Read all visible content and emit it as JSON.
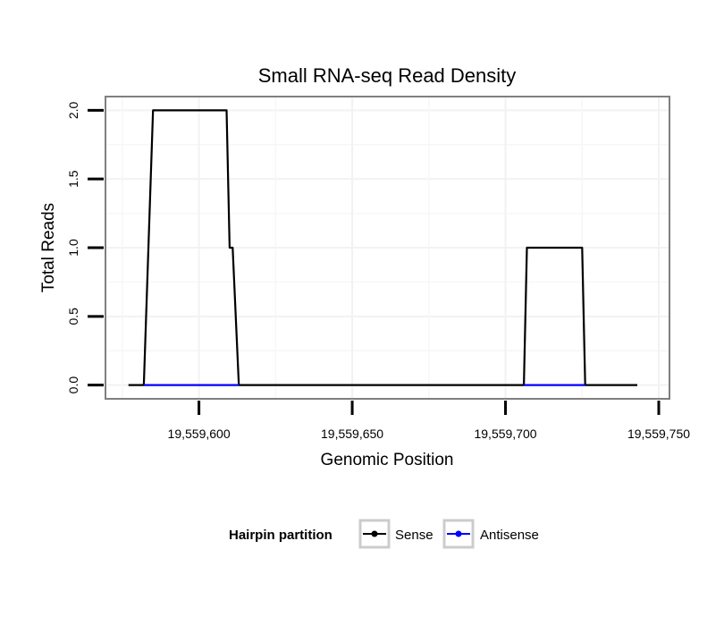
{
  "chart_data": {
    "type": "line",
    "title": "Small RNA-seq Read Density",
    "xlabel": "Genomic Position",
    "ylabel": "Total Reads",
    "xlim": [
      19559569.5,
      19559753.5
    ],
    "ylim": [
      -0.1,
      2.1
    ],
    "x_ticks": [
      19559600,
      19559650,
      19559700,
      19559750
    ],
    "x_tick_labels": [
      "19,559,600",
      "19,559,650",
      "19,559,700",
      "19,559,750"
    ],
    "y_ticks": [
      0.0,
      0.5,
      1.0,
      1.5,
      2.0
    ],
    "y_tick_labels": [
      "0.0",
      "0.5",
      "1.0",
      "1.5",
      "2.0"
    ],
    "grid": true,
    "legend": {
      "title": "Hairpin partition",
      "position": "bottom",
      "entries": [
        {
          "label": "Sense",
          "color": "#000000"
        },
        {
          "label": "Antisense",
          "color": "#0000ff"
        }
      ]
    },
    "series": [
      {
        "name": "Sense",
        "color": "#000000",
        "x": [
          19559577,
          19559582,
          19559585,
          19559609,
          19559610,
          19559611,
          19559613,
          19559706,
          19559707,
          19559725,
          19559726,
          19559743
        ],
        "y": [
          0,
          0,
          2,
          2,
          1,
          1,
          0,
          0,
          1,
          1,
          0,
          0
        ]
      },
      {
        "name": "Antisense",
        "color": "#0000ff",
        "x": [
          19559582,
          19559613,
          19559706,
          19559726
        ],
        "y": [
          0,
          0,
          0,
          0
        ],
        "segments": [
          [
            0,
            1
          ],
          [
            2,
            3
          ]
        ]
      }
    ]
  }
}
